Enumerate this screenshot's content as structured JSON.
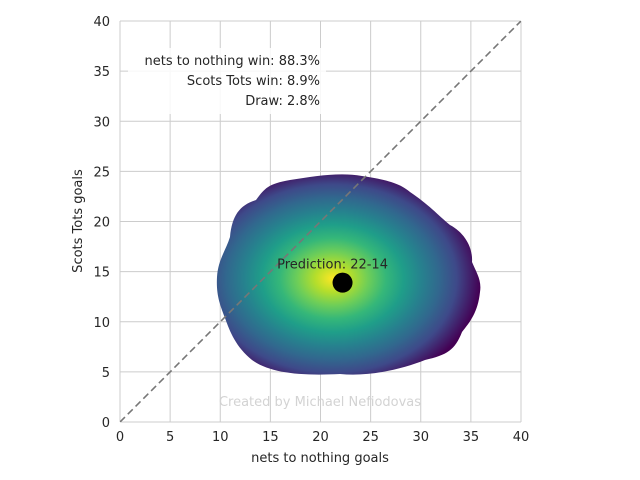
{
  "chart_data": {
    "type": "heatmap",
    "xlabel": "nets to nothing goals",
    "ylabel": "Scots Tots goals",
    "xlim": [
      0,
      40
    ],
    "ylim": [
      0,
      40
    ],
    "xticks": [
      0,
      5,
      10,
      15,
      20,
      25,
      30,
      35,
      40
    ],
    "yticks": [
      0,
      5,
      10,
      15,
      20,
      25,
      30,
      35,
      40
    ],
    "grid": true,
    "colormap": "viridis",
    "density_center": [
      21.5,
      14
    ],
    "density_extent": {
      "x": [
        10,
        36
      ],
      "y": [
        4.5,
        24.7
      ]
    },
    "prediction_point": {
      "x": 22.2,
      "y": 13.9,
      "color": "#000000"
    },
    "prediction_label": "Prediction: 22-14",
    "diagonal_line": {
      "from": [
        0,
        0
      ],
      "to": [
        40,
        40
      ],
      "style": "dashed",
      "color": "#777777"
    },
    "win_probabilities": [
      "nets to nothing win: 88.3%",
      "Scots Tots win: 8.9%",
      "Draw: 2.8%"
    ],
    "watermark": "Created by Michael Nefiodovas"
  }
}
